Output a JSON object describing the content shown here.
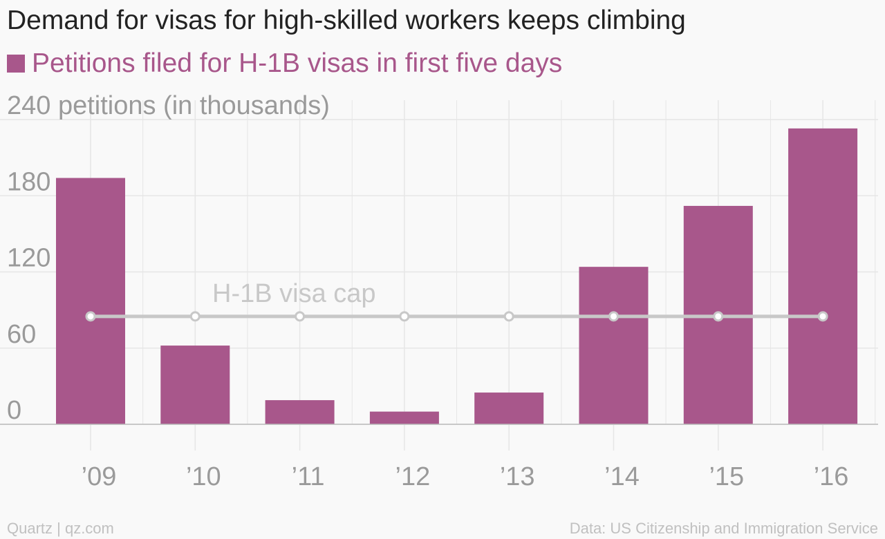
{
  "title": "Demand for visas for high-skilled workers keeps climbing",
  "colors": {
    "bar": "#a8578b",
    "cap_line": "#c8c8c8",
    "grid": "#e6e6e6",
    "axis_text": "#9a9a9a",
    "title": "#222222",
    "footer": "#c0c0c0"
  },
  "chart_data": {
    "type": "bar",
    "categories": [
      "’09",
      "’10",
      "’11",
      "’12",
      "’13",
      "’14",
      "’15",
      "’16"
    ],
    "series": [
      {
        "name": "Petitions filed for H-1B visas in first five days",
        "values": [
          194,
          62,
          19,
          10,
          25,
          124,
          172,
          233
        ]
      }
    ],
    "reference_line": {
      "label": "H-1B visa cap",
      "value": 85
    },
    "ylabel": "petitions (in thousands)",
    "yticks": [
      0,
      60,
      120,
      180,
      240
    ],
    "ylim": [
      0,
      240
    ],
    "grid": true,
    "legend_position": "top-left"
  },
  "footer": {
    "left": "Quartz | qz.com",
    "right": "Data: US Citizenship and Immigration Service"
  }
}
